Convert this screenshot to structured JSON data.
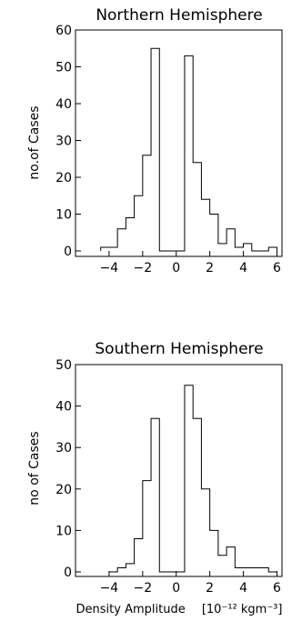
{
  "chart_data": [
    {
      "type": "bar",
      "title": "Northern Hemisphere",
      "ylabel": "no.of Cases",
      "xlabel": "",
      "xlim": [
        -6,
        6.3
      ],
      "ylim": [
        0,
        60
      ],
      "xticks": [
        -4,
        -2,
        0,
        2,
        4,
        6
      ],
      "yticks": [
        0,
        10,
        20,
        30,
        40,
        50,
        60
      ],
      "bin_width": 0.5,
      "bins": [
        {
          "x": -4.25,
          "value": 1
        },
        {
          "x": -3.75,
          "value": 1
        },
        {
          "x": -3.25,
          "value": 6
        },
        {
          "x": -2.75,
          "value": 9
        },
        {
          "x": -2.25,
          "value": 15
        },
        {
          "x": -1.75,
          "value": 26
        },
        {
          "x": -1.25,
          "value": 55
        },
        {
          "x": -0.75,
          "value": 0
        },
        {
          "x": -0.25,
          "value": 0
        },
        {
          "x": 0.25,
          "value": 0
        },
        {
          "x": 0.75,
          "value": 53
        },
        {
          "x": 1.25,
          "value": 24
        },
        {
          "x": 1.75,
          "value": 14
        },
        {
          "x": 2.25,
          "value": 10
        },
        {
          "x": 2.75,
          "value": 2
        },
        {
          "x": 3.25,
          "value": 6
        },
        {
          "x": 3.75,
          "value": 1
        },
        {
          "x": 4.25,
          "value": 2
        },
        {
          "x": 4.75,
          "value": 0
        },
        {
          "x": 5.25,
          "value": 0
        },
        {
          "x": 5.75,
          "value": 1
        }
      ]
    },
    {
      "type": "bar",
      "title": "Southern Hemisphere",
      "ylabel": "no of Cases",
      "xlabel": "Density Amplitude",
      "xlabel_unit": "[10⁻¹² kgm⁻³]",
      "xlim": [
        -6,
        6.3
      ],
      "ylim": [
        0,
        50
      ],
      "xticks": [
        -4,
        -2,
        0,
        2,
        4,
        6
      ],
      "yticks": [
        0,
        10,
        20,
        30,
        40,
        50
      ],
      "bin_width": 0.5,
      "bins": [
        {
          "x": -3.75,
          "value": 0
        },
        {
          "x": -3.25,
          "value": 1
        },
        {
          "x": -2.75,
          "value": 2
        },
        {
          "x": -2.25,
          "value": 8
        },
        {
          "x": -1.75,
          "value": 22
        },
        {
          "x": -1.25,
          "value": 37
        },
        {
          "x": -0.75,
          "value": 0
        },
        {
          "x": -0.25,
          "value": 0
        },
        {
          "x": 0.25,
          "value": 0
        },
        {
          "x": 0.75,
          "value": 45
        },
        {
          "x": 1.25,
          "value": 37
        },
        {
          "x": 1.75,
          "value": 20
        },
        {
          "x": 2.25,
          "value": 10
        },
        {
          "x": 2.75,
          "value": 4
        },
        {
          "x": 3.25,
          "value": 6
        },
        {
          "x": 3.75,
          "value": 1
        },
        {
          "x": 4.25,
          "value": 1
        },
        {
          "x": 4.75,
          "value": 1
        },
        {
          "x": 5.25,
          "value": 1
        },
        {
          "x": 5.75,
          "value": 0
        }
      ]
    }
  ]
}
